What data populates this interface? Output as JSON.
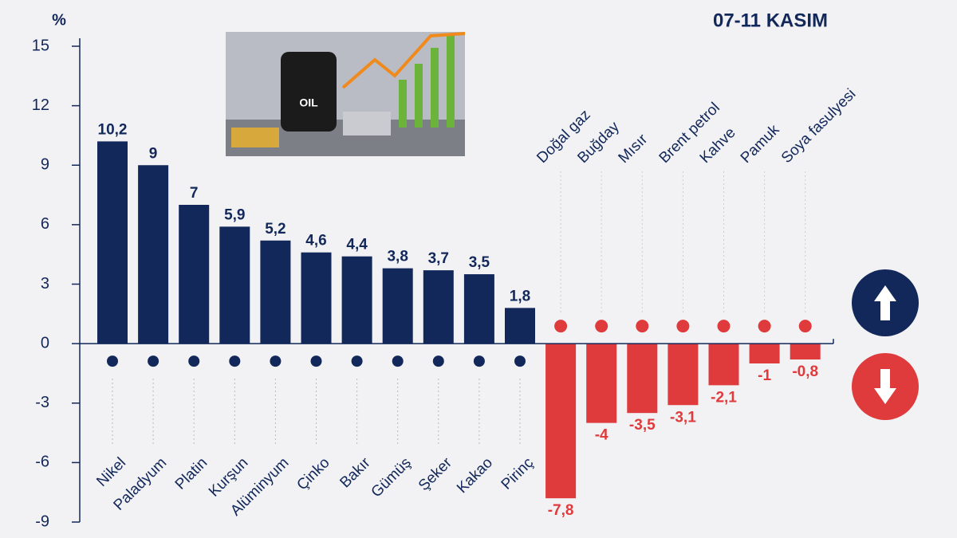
{
  "chart_data": {
    "type": "bar",
    "title": "07-11 KASIM",
    "y_label": "%",
    "categories": [
      "Nikel",
      "Paladyum",
      "Platin",
      "Kurşun",
      "Alüminyum",
      "Çinko",
      "Bakır",
      "Gümüş",
      "Şeker",
      "Kakao",
      "Pirinç",
      "Doğal gaz",
      "Buğday",
      "Mısır",
      "Brent petrol",
      "Kahve",
      "Pamuk",
      "Soya fasulyesi"
    ],
    "values": [
      10.2,
      9,
      7,
      5.9,
      5.2,
      4.6,
      4.4,
      3.8,
      3.7,
      3.5,
      1.8,
      -7.8,
      -4,
      -3.5,
      -3.1,
      -2.1,
      -1,
      -0.8
    ],
    "value_labels": [
      "10,2",
      "9",
      "7",
      "5,9",
      "5,2",
      "4,6",
      "4,4",
      "3,8",
      "3,7",
      "3,5",
      "1,8",
      "-7,8",
      "-4",
      "-3,5",
      "-3,1",
      "-2,1",
      "-1",
      "-0,8"
    ],
    "colors": {
      "positive": "#13285a",
      "negative": "#df3a3c"
    },
    "ylim": [
      -9,
      15
    ],
    "yticks": [
      15,
      12,
      9,
      6,
      3,
      0,
      -3,
      -6,
      -9
    ]
  }
}
